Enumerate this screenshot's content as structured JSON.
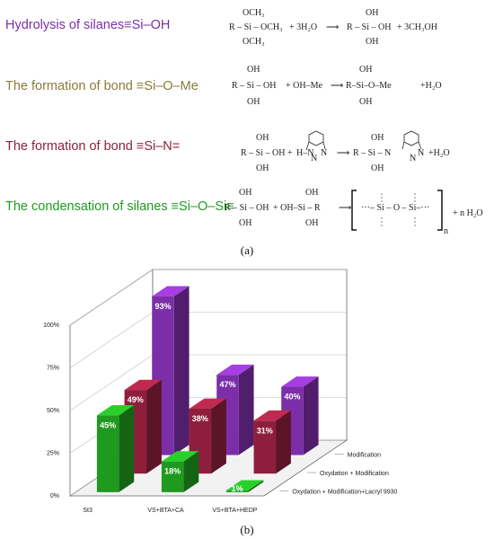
{
  "scheme": {
    "reactions": [
      {
        "label": "Hydrolysis of silanes≡Si–OH",
        "color": "#7b2ea8"
      },
      {
        "label": "The formation of bond ≡Si–O–Me",
        "color": "#8a7a3a"
      },
      {
        "label": "The formation of bond  ≡Si–N=",
        "color": "#8e1f3c"
      },
      {
        "label": "The condensation of silanes ≡Si–O–Si≡",
        "color": "#1f9a1f"
      }
    ],
    "formula1": {
      "r": "R – Si – OCH₃",
      "top": "OCH₃",
      "bottom": "OCH₃",
      "plus": "+ 3H₂O",
      "arrow": "⟶",
      "product": "R – Si – OH",
      "ptop": "OH",
      "pbottom": "OH",
      "byproduct": "+ 3CH₃OH"
    },
    "formula2": {
      "r": "R – Si – OH",
      "top": "OH",
      "bottom": "OH",
      "plus": "+ OH–Me",
      "arrow": "⟶",
      "product": "R–Si–O–Me",
      "ptop": "OH",
      "pbottom": "OH",
      "byproduct": "+H₂O"
    },
    "formula3": {
      "r": "R – Si – OH",
      "top": "OH",
      "bottom": "OH",
      "plus": "+",
      "reagent": "H–N",
      "rn2": "N",
      "rn3": "N",
      "arrow": "⟶",
      "product": "R – Si – N",
      "pn2": "N",
      "pn3": "N",
      "ptop": "OH",
      "pbottom": "OH",
      "byproduct": "+H₂O"
    },
    "formula4": {
      "r": "R – Si – OH",
      "top": "OH",
      "bottom": "OH",
      "plus": "+ OH–Si – R",
      "top2": "OH",
      "bottom2": "OH",
      "arrow": "⟶",
      "poly": "···– Si – O – Si–···",
      "sub": "n",
      "byproduct": "+ n H₂O"
    },
    "panel_a": "(a)"
  },
  "chart_data": {
    "type": "bar",
    "categories": [
      "St3",
      "VS+BTA+CA",
      "VS+BTA+HEDP"
    ],
    "series": [
      {
        "name": "Oxydation + Modification+Lacryl 9930",
        "color": "#1f9a1f",
        "values": [
          45,
          18,
          1
        ],
        "labels": [
          "45%",
          "18%",
          "1%"
        ]
      },
      {
        "name": "Oxydation + Modification",
        "color": "#8e1f3c",
        "values": [
          49,
          38,
          31
        ],
        "labels": [
          "49%",
          "38%",
          "31%"
        ]
      },
      {
        "name": "Modification",
        "color": "#7b2ea8",
        "values": [
          93,
          47,
          40
        ],
        "labels": [
          "93%",
          "47%",
          "40%"
        ]
      }
    ],
    "yticks": [
      "0%",
      "25%",
      "50%",
      "75%",
      "100%"
    ],
    "ylim": [
      0,
      100
    ],
    "panel_label": "(b)"
  }
}
